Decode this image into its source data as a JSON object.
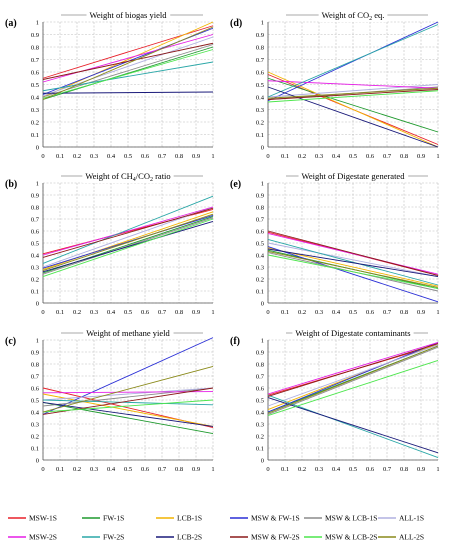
{
  "series_styles": [
    {
      "name": "MSW-1S",
      "color": "#e8202a"
    },
    {
      "name": "FW-1S",
      "color": "#1f9a2e"
    },
    {
      "name": "LCB-1S",
      "color": "#f2b400"
    },
    {
      "name": "MSW & FW-1S",
      "color": "#2a2fd6"
    },
    {
      "name": "MSW & LCB-1S",
      "color": "#8c8c8c"
    },
    {
      "name": "ALL-1S",
      "color": "#b0b0e0"
    },
    {
      "name": "MSW-2S",
      "color": "#e61ee6"
    },
    {
      "name": "FW-2S",
      "color": "#2aa7a7"
    },
    {
      "name": "LCB-2S",
      "color": "#1a1a7a"
    },
    {
      "name": "MSW & FW-2S",
      "color": "#8b1a1a"
    },
    {
      "name": "MSW & LCB-2S",
      "color": "#4de64d"
    },
    {
      "name": "ALL-2S",
      "color": "#8a8a1a"
    }
  ],
  "chart_data": [
    {
      "type": "line",
      "panel_label": "(a)",
      "title": "Weight of biogas yield",
      "x": [
        0,
        1
      ],
      "xticks": [
        0,
        0.1,
        0.2,
        0.3,
        0.4,
        0.5,
        0.6,
        0.7,
        0.8,
        0.9,
        1
      ],
      "xlim": [
        0,
        1
      ],
      "ylim": [
        0,
        1
      ],
      "yticks": [
        0,
        0.1,
        0.2,
        0.3,
        0.4,
        0.5,
        0.6,
        0.7,
        0.8,
        0.9,
        1
      ],
      "series": [
        {
          "values": [
            0.55,
            0.97
          ]
        },
        {
          "values": [
            0.38,
            0.8
          ]
        },
        {
          "values": [
            0.4,
            1.0
          ]
        },
        {
          "values": [
            0.42,
            0.95
          ]
        },
        {
          "values": [
            0.4,
            0.82
          ]
        },
        {
          "values": [
            0.41,
            0.88
          ]
        },
        {
          "values": [
            0.52,
            0.9
          ]
        },
        {
          "values": [
            0.45,
            0.68
          ]
        },
        {
          "values": [
            0.43,
            0.44
          ]
        },
        {
          "values": [
            0.54,
            0.83
          ]
        },
        {
          "values": [
            0.39,
            0.78
          ]
        },
        {
          "values": [
            0.38,
            0.96
          ]
        }
      ]
    },
    {
      "type": "line",
      "panel_label": "(b)",
      "title": "Weight of CH4/CO2 ratio",
      "title_parts": {
        "a": "Weight of CH",
        "s1": "4",
        "b": "/CO",
        "s2": "2",
        "c": " ratio"
      },
      "x": [
        0,
        1
      ],
      "xticks": [
        0,
        0.1,
        0.2,
        0.3,
        0.4,
        0.5,
        0.6,
        0.7,
        0.8,
        0.9,
        1
      ],
      "xlim": [
        0,
        1
      ],
      "ylim": [
        0,
        1
      ],
      "yticks": [
        0,
        0.1,
        0.2,
        0.3,
        0.4,
        0.5,
        0.6,
        0.7,
        0.8,
        0.9,
        1
      ],
      "series": [
        {
          "values": [
            0.41,
            0.78
          ]
        },
        {
          "values": [
            0.25,
            0.72
          ]
        },
        {
          "values": [
            0.28,
            0.76
          ]
        },
        {
          "values": [
            0.29,
            0.73
          ]
        },
        {
          "values": [
            0.24,
            0.71
          ]
        },
        {
          "values": [
            0.3,
            0.8
          ]
        },
        {
          "values": [
            0.4,
            0.8
          ]
        },
        {
          "values": [
            0.33,
            0.89
          ]
        },
        {
          "values": [
            0.26,
            0.68
          ]
        },
        {
          "values": [
            0.38,
            0.79
          ]
        },
        {
          "values": [
            0.22,
            0.7
          ]
        },
        {
          "values": [
            0.27,
            0.74
          ]
        }
      ]
    },
    {
      "type": "line",
      "panel_label": "(c)",
      "title": "Weight of methane yield",
      "x": [
        0,
        1
      ],
      "xticks": [
        0,
        0.1,
        0.2,
        0.3,
        0.4,
        0.5,
        0.6,
        0.7,
        0.8,
        0.9,
        1
      ],
      "xlim": [
        0,
        1
      ],
      "ylim": [
        0,
        1
      ],
      "yticks": [
        0,
        0.1,
        0.2,
        0.3,
        0.4,
        0.5,
        0.6,
        0.7,
        0.8,
        0.9,
        1
      ],
      "series": [
        {
          "values": [
            0.6,
            0.27
          ]
        },
        {
          "values": [
            0.48,
            0.22
          ]
        },
        {
          "values": [
            0.55,
            0.28
          ]
        },
        {
          "values": [
            0.38,
            1.02
          ]
        },
        {
          "values": [
            0.45,
            0.6
          ]
        },
        {
          "values": [
            0.5,
            0.6
          ]
        },
        {
          "values": [
            0.56,
            0.57
          ]
        },
        {
          "values": [
            0.5,
            0.46
          ]
        },
        {
          "values": [
            0.48,
            0.28
          ]
        },
        {
          "values": [
            0.38,
            0.6
          ]
        },
        {
          "values": [
            0.4,
            0.5
          ]
        },
        {
          "values": [
            0.4,
            0.78
          ]
        }
      ]
    },
    {
      "type": "line",
      "panel_label": "(d)",
      "title": "Weight of CO2 eq.",
      "title_parts": {
        "a": "Weight of CO",
        "s1": "2",
        "b": " eq."
      },
      "x": [
        0,
        1
      ],
      "xticks": [
        0,
        0.1,
        0.2,
        0.3,
        0.4,
        0.5,
        0.6,
        0.7,
        0.8,
        0.9,
        1
      ],
      "xlim": [
        0,
        1
      ],
      "ylim": [
        0,
        1
      ],
      "yticks": [
        0,
        0.1,
        0.2,
        0.3,
        0.4,
        0.5,
        0.6,
        0.7,
        0.8,
        0.9,
        1
      ],
      "series": [
        {
          "values": [
            0.58,
            0.02
          ]
        },
        {
          "values": [
            0.55,
            0.12
          ]
        },
        {
          "values": [
            0.6,
            0.0
          ]
        },
        {
          "values": [
            0.37,
            1.0
          ]
        },
        {
          "values": [
            0.38,
            0.48
          ]
        },
        {
          "values": [
            0.4,
            0.5
          ]
        },
        {
          "values": [
            0.53,
            0.47
          ]
        },
        {
          "values": [
            0.4,
            0.98
          ]
        },
        {
          "values": [
            0.48,
            0.0
          ]
        },
        {
          "values": [
            0.38,
            0.46
          ]
        },
        {
          "values": [
            0.36,
            0.45
          ]
        },
        {
          "values": [
            0.39,
            0.47
          ]
        }
      ]
    },
    {
      "type": "line",
      "panel_label": "(e)",
      "title": "Weight of Digestate generated",
      "x": [
        0,
        1
      ],
      "xticks": [
        0,
        0.1,
        0.2,
        0.3,
        0.4,
        0.5,
        0.6,
        0.7,
        0.8,
        0.9,
        1
      ],
      "xlim": [
        0,
        1
      ],
      "ylim": [
        0,
        1
      ],
      "yticks": [
        0,
        0.1,
        0.2,
        0.3,
        0.4,
        0.5,
        0.6,
        0.7,
        0.8,
        0.9,
        1
      ],
      "series": [
        {
          "values": [
            0.59,
            0.23
          ]
        },
        {
          "values": [
            0.44,
            0.12
          ]
        },
        {
          "values": [
            0.46,
            0.14
          ]
        },
        {
          "values": [
            0.47,
            0.01
          ]
        },
        {
          "values": [
            0.42,
            0.1
          ]
        },
        {
          "values": [
            0.5,
            0.22
          ]
        },
        {
          "values": [
            0.58,
            0.24
          ]
        },
        {
          "values": [
            0.53,
            0.15
          ]
        },
        {
          "values": [
            0.45,
            0.22
          ]
        },
        {
          "values": [
            0.6,
            0.23
          ]
        },
        {
          "values": [
            0.4,
            0.12
          ]
        },
        {
          "values": [
            0.43,
            0.13
          ]
        }
      ]
    },
    {
      "type": "line",
      "panel_label": "(f)",
      "title": "Weight of Digestate contaminants",
      "x": [
        0,
        1
      ],
      "xticks": [
        0,
        0.1,
        0.2,
        0.3,
        0.4,
        0.5,
        0.6,
        0.7,
        0.8,
        0.9,
        1
      ],
      "xlim": [
        0,
        1
      ],
      "ylim": [
        0,
        1
      ],
      "yticks": [
        0,
        0.1,
        0.2,
        0.3,
        0.4,
        0.5,
        0.6,
        0.7,
        0.8,
        0.9,
        1
      ],
      "series": [
        {
          "values": [
            0.54,
            0.96
          ]
        },
        {
          "values": [
            0.4,
            0.95
          ]
        },
        {
          "values": [
            0.42,
            0.97
          ]
        },
        {
          "values": [
            0.4,
            0.98
          ]
        },
        {
          "values": [
            0.38,
            0.94
          ]
        },
        {
          "values": [
            0.45,
            0.96
          ]
        },
        {
          "values": [
            0.55,
            0.98
          ]
        },
        {
          "values": [
            0.54,
            0.02
          ]
        },
        {
          "values": [
            0.52,
            0.06
          ]
        },
        {
          "values": [
            0.53,
            0.97
          ]
        },
        {
          "values": [
            0.37,
            0.83
          ]
        },
        {
          "values": [
            0.39,
            0.95
          ]
        }
      ]
    }
  ]
}
